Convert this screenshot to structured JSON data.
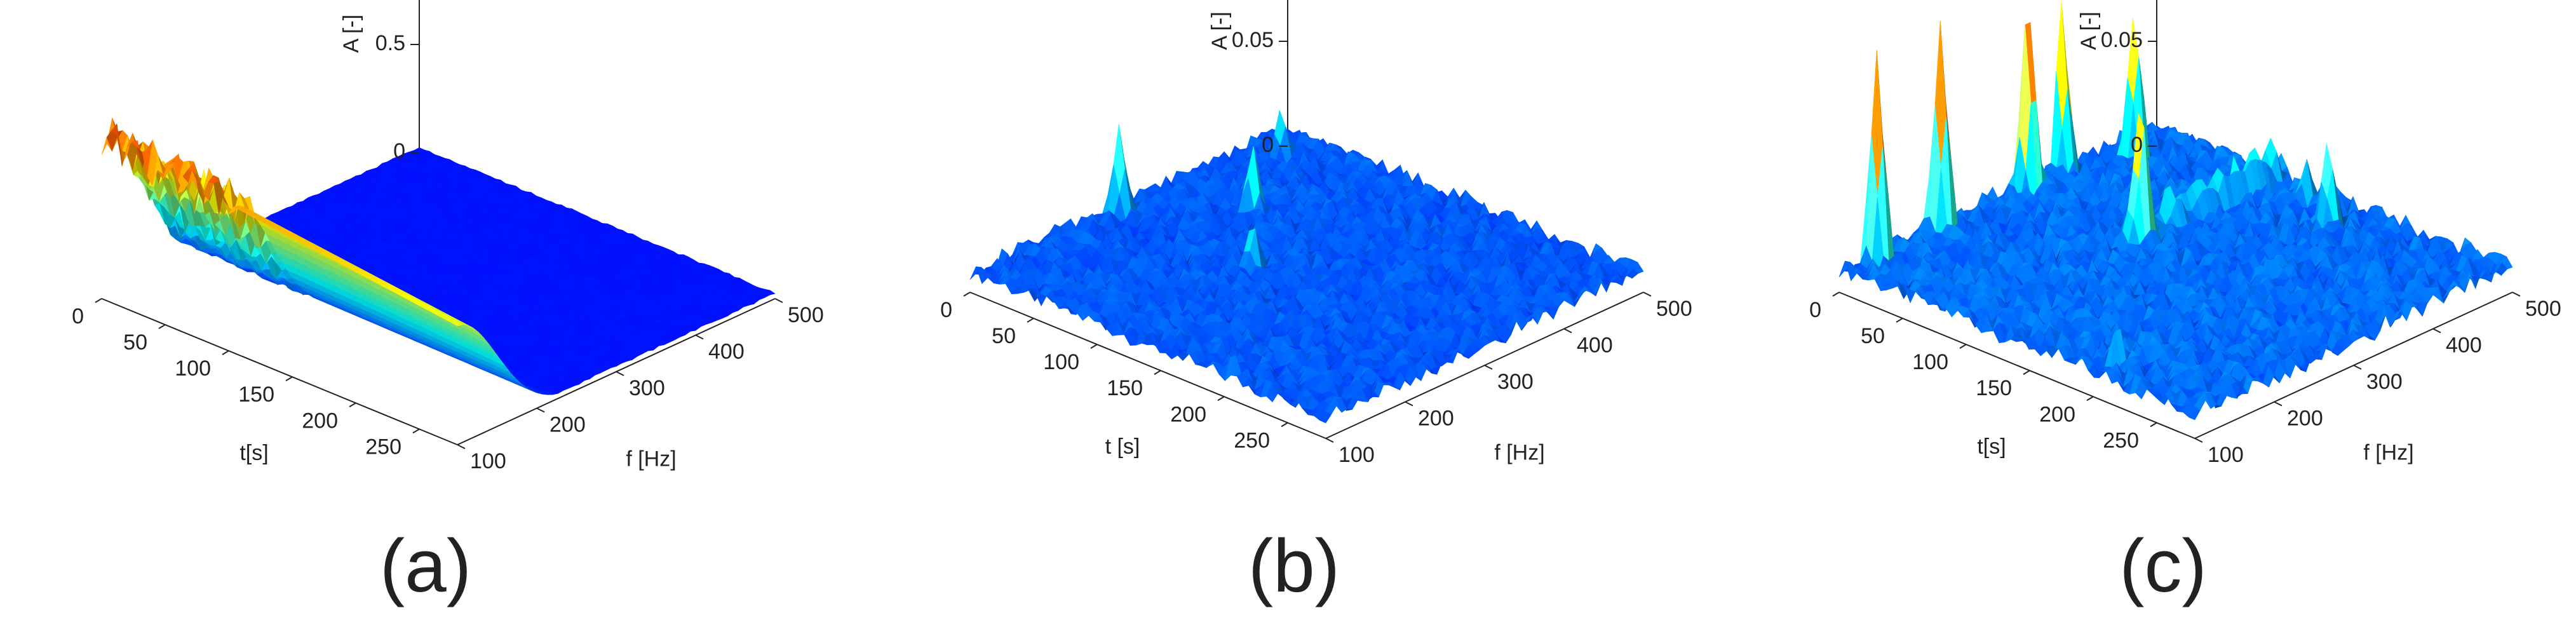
{
  "chart_data": [
    {
      "type": "surface",
      "panel_label": "(a)",
      "xlabel": "t[s]",
      "ylabel": "f [Hz]",
      "zlabel": "A [-]",
      "xlim": [
        0,
        280
      ],
      "ylim": [
        100,
        500
      ],
      "zlim": [
        0,
        1
      ],
      "xticks": [
        "0",
        "50",
        "100",
        "150",
        "200",
        "250"
      ],
      "yticks": [
        "100",
        "200",
        "300",
        "400",
        "500"
      ],
      "zticks": [
        "0",
        "0.5",
        "1"
      ],
      "colormap": "jet",
      "ridge": {
        "f_range_hz": [
          100,
          140
        ],
        "peak_t_s": 0,
        "peak_a": 0.75,
        "end_t_s": 280,
        "end_a": 0.55
      },
      "fluctuation_band": {
        "t_range_s": [
          0,
          100
        ]
      }
    },
    {
      "type": "surface",
      "panel_label": "(b)",
      "xlabel": "t [s]",
      "ylabel": "f [Hz]",
      "zlabel": "A [-]",
      "xlim": [
        0,
        280
      ],
      "ylim": [
        100,
        500
      ],
      "zlim": [
        0,
        0.1
      ],
      "xticks": [
        "0",
        "50",
        "100",
        "150",
        "200",
        "250"
      ],
      "yticks": [
        "100",
        "200",
        "300",
        "400",
        "500"
      ],
      "zticks": [
        "0",
        "0.05",
        "0.1"
      ],
      "colormap": "jet",
      "background_level": 0.01,
      "peaks": [
        {
          "t": 5,
          "f": 280,
          "a": 0.05
        },
        {
          "t": 60,
          "f": 360,
          "a": 0.04
        },
        {
          "t": 110,
          "f": 280,
          "a": 0.03
        },
        {
          "t": 20,
          "f": 460,
          "a": 0.03
        },
        {
          "t": 200,
          "f": 110,
          "a": 0.02
        }
      ]
    },
    {
      "type": "surface",
      "panel_label": "(c)",
      "xlabel": "t[s]",
      "ylabel": "f [Hz]",
      "zlabel": "A [-]",
      "xlim": [
        0,
        280
      ],
      "ylim": [
        100,
        500
      ],
      "zlim": [
        0,
        0.1
      ],
      "xticks": [
        "0",
        "50",
        "100",
        "150",
        "200",
        "250"
      ],
      "yticks": [
        "100",
        "200",
        "300",
        "400",
        "500"
      ],
      "zticks": [
        "0",
        "0.05",
        "0.1"
      ],
      "colormap": "jet",
      "background_level": 0.012,
      "peaks": [
        {
          "t": 5,
          "f": 140,
          "a": 0.11
        },
        {
          "t": 5,
          "f": 220,
          "a": 0.11
        },
        {
          "t": 5,
          "f": 330,
          "a": 0.1
        },
        {
          "t": 0,
          "f": 380,
          "a": 0.09
        },
        {
          "t": 20,
          "f": 440,
          "a": 0.08
        },
        {
          "t": 100,
          "f": 320,
          "a": 0.08
        },
        {
          "t": 160,
          "f": 460,
          "a": 0.05
        },
        {
          "t": 200,
          "f": 130,
          "a": 0.03
        },
        {
          "t": 130,
          "f": 480,
          "a": 0.03
        }
      ],
      "ridge": {
        "t_s": 100,
        "f_range_hz": [
          300,
          500
        ],
        "a": 0.03
      }
    }
  ]
}
